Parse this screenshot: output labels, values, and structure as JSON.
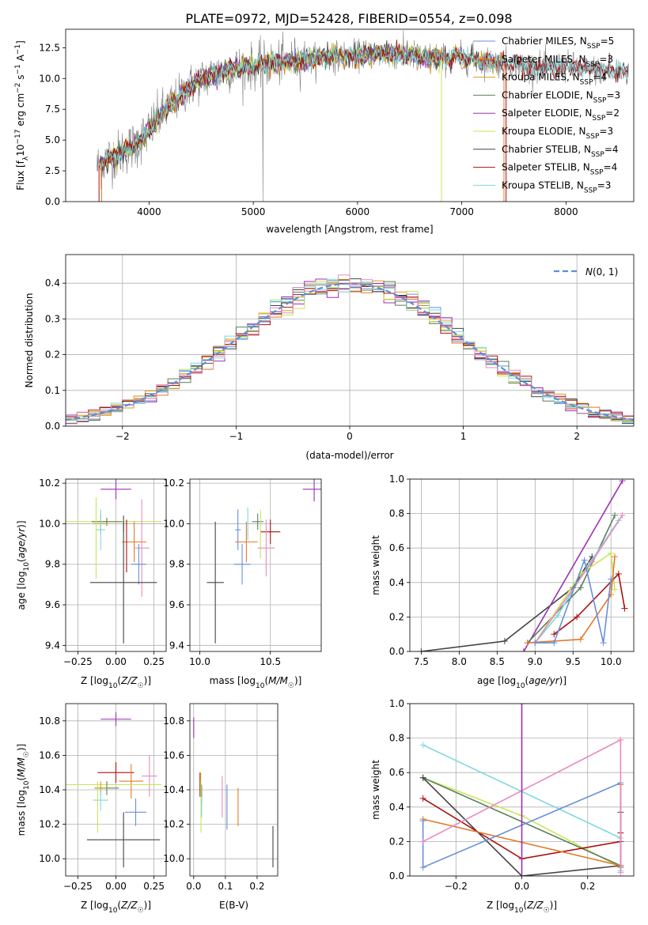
{
  "figure_title": "PLATE=0972, MJD=52428, FIBERID=0554, z=0.098",
  "colors": {
    "Chabrier MILES": "#6a8fd8",
    "Salpeter MILES": "#e07b2a",
    "Kroupa MILES": "#d4a017",
    "Chabrier ELODIE": "#5a7f5a",
    "Salpeter ELODIE": "#9b30b5",
    "Kroupa ELODIE": "#c8e65a",
    "Chabrier STELIB": "#444444",
    "Salpeter STELIB": "#aa1111",
    "Kroupa STELIB": "#7fd8de",
    "pink": "#e88ac0",
    "observed": "#808080",
    "normal": "#5b8fd6"
  },
  "chart_data": [
    {
      "id": "spectrum",
      "type": "line",
      "title": "PLATE=0972, MJD=52428, FIBERID=0554, z=0.098",
      "xlabel": "wavelength [Angstrom, rest frame]",
      "ylabel": "Flux [f",
      "xlim": [
        3200,
        8650
      ],
      "ylim": [
        0,
        14
      ],
      "xticks": [
        "4000",
        "5000",
        "6000",
        "7000",
        "8000"
      ],
      "yticks": [
        "0.0",
        "2.5",
        "5.0",
        "7.5",
        "10.0",
        "12.5"
      ],
      "continuum": {
        "x": [
          3500,
          3600,
          3700,
          3800,
          3900,
          4000,
          4100,
          4200,
          4300,
          4400,
          4500,
          4600,
          4800,
          5000,
          5200,
          5400,
          5600,
          5800,
          6000,
          6200,
          6400,
          6600,
          6800,
          7000,
          7200,
          7400,
          7600,
          7800,
          8000,
          8200,
          8400,
          8600
        ],
        "y": [
          2.8,
          3.5,
          3.8,
          4.3,
          4.8,
          5.8,
          6.9,
          7.8,
          8.6,
          9.4,
          9.9,
          10.3,
          10.8,
          11.0,
          11.2,
          11.5,
          11.6,
          11.8,
          11.9,
          12.0,
          12.0,
          11.8,
          11.6,
          11.7,
          11.4,
          11.3,
          11.0,
          10.9,
          11.0,
          10.7,
          10.6,
          10.5
        ]
      },
      "legend": [
        {
          "label": "Chabrier MILES, N",
          "sub": "SSP",
          "suffix": "=5"
        },
        {
          "label": "Salpeter MILES, N",
          "sub": "SSP",
          "suffix": "=3"
        },
        {
          "label": "Kroupa MILES, N",
          "sub": "SSP",
          "suffix": "=4"
        },
        {
          "label": "Chabrier ELODIE, N",
          "sub": "SSP",
          "suffix": "=3"
        },
        {
          "label": "Salpeter ELODIE, N",
          "sub": "SSP",
          "suffix": "=2"
        },
        {
          "label": "Kroupa ELODIE, N",
          "sub": "SSP",
          "suffix": "=3"
        },
        {
          "label": "Chabrier STELIB, N",
          "sub": "SSP",
          "suffix": "=4"
        },
        {
          "label": "Salpeter STELIB, N",
          "sub": "SSP",
          "suffix": "=4"
        },
        {
          "label": "Kroupa STELIB, N",
          "sub": "SSP",
          "suffix": "=3"
        }
      ]
    },
    {
      "id": "residuals",
      "type": "line",
      "xlabel": "(data-model)/error",
      "ylabel": "Normed distribution",
      "xlim": [
        -2.5,
        2.5
      ],
      "ylim": [
        0,
        0.48
      ],
      "xticks": [
        "−2",
        "−1",
        "0",
        "1",
        "2"
      ],
      "yticks": [
        "0.0",
        "0.1",
        "0.2",
        "0.3",
        "0.4"
      ],
      "legend": "N(0,1)",
      "bin_width": 0.1
    },
    {
      "id": "age_vs_Z",
      "type": "scatter",
      "xlabel": "Z [log10(Z/Z☉)]",
      "ylabel": "age [log10(age/yr)]",
      "xlim": [
        -0.33,
        0.33
      ],
      "ylim": [
        9.37,
        10.22
      ],
      "xticks": [
        "−0.25",
        "0.00",
        "0.25"
      ],
      "yticks": [
        "9.4",
        "9.6",
        "9.8",
        "10.0",
        "10.2"
      ],
      "points": [
        {
          "c": "Salpeter ELODIE",
          "x": 0.0,
          "y": 10.17,
          "xe": 0.1,
          "ye": 0.05
        },
        {
          "c": "Kroupa ELODIE",
          "x": -0.02,
          "y": 10.01,
          "xe": 0.32,
          "ye": 0.0
        },
        {
          "c": "Chabrier ELODIE",
          "x": -0.06,
          "y": 10.01,
          "xe": 0.1,
          "ye": 0.02
        },
        {
          "c": "Kroupa MILES",
          "x": -0.1,
          "y": 10.0,
          "xe": 0.05,
          "ye": 0.05
        },
        {
          "c": "Chabrier STELIB",
          "x": 0.05,
          "y": 10.0,
          "xe": 0.0,
          "ye": 0.04
        },
        {
          "c": "Kroupa STELIB",
          "x": -0.1,
          "y": 9.97,
          "xe": 0.03,
          "ye": 0.1
        },
        {
          "c": "Kroupa ELODIE",
          "x": -0.13,
          "y": 9.93,
          "xe": 0.0,
          "ye": 0.2
        },
        {
          "c": "Salpeter MILES",
          "x": 0.12,
          "y": 9.91,
          "xe": 0.08,
          "ye": 0.1
        },
        {
          "c": "Salpeter STELIB",
          "x": 0.07,
          "y": 9.89,
          "xe": 0.0,
          "ye": 0.13
        },
        {
          "c": "pink",
          "x": 0.17,
          "y": 9.88,
          "xe": 0.05,
          "ye": 0.24
        },
        {
          "c": "Chabrier MILES",
          "x": 0.15,
          "y": 9.8,
          "xe": 0.05,
          "ye": 0.1
        },
        {
          "c": "Chabrier STELIB",
          "x": 0.05,
          "y": 9.71,
          "xe": 0.22,
          "ye": 0.3
        }
      ]
    },
    {
      "id": "age_vs_mass",
      "type": "scatter",
      "xlabel": "mass [log10(M/M☉)]",
      "xlim": [
        9.93,
        10.86
      ],
      "ylim": [
        9.37,
        10.22
      ],
      "xticks": [
        "10.0",
        "10.5"
      ],
      "yticks": [
        "9.4",
        "9.6",
        "9.8",
        "10.0",
        "10.2"
      ],
      "points": [
        {
          "c": "Salpeter ELODIE",
          "x": 10.81,
          "y": 10.17,
          "xe": 0.08,
          "ye": 0.06
        },
        {
          "c": "Chabrier ELODIE",
          "x": 10.41,
          "y": 10.01,
          "xe": 0.04,
          "ye": 0.04
        },
        {
          "c": "Kroupa STELIB",
          "x": 10.34,
          "y": 10.0,
          "xe": 0.0,
          "ye": 0.08
        },
        {
          "c": "Salpeter STELIB",
          "x": 10.5,
          "y": 9.96,
          "xe": 0.07,
          "ye": 0.06
        },
        {
          "c": "Chabrier MILES",
          "x": 10.27,
          "y": 9.97,
          "xe": 0.02,
          "ye": 0.1
        },
        {
          "c": "Salpeter MILES",
          "x": 10.33,
          "y": 9.91,
          "xe": 0.08,
          "ye": 0.1
        },
        {
          "c": "Kroupa ELODIE",
          "x": 10.43,
          "y": 9.95,
          "xe": 0.0,
          "ye": 0.12
        },
        {
          "c": "pink",
          "x": 10.47,
          "y": 9.88,
          "xe": 0.06,
          "ye": 0.14
        },
        {
          "c": "Chabrier MILES",
          "x": 10.3,
          "y": 9.8,
          "xe": 0.06,
          "ye": 0.1
        },
        {
          "c": "Chabrier STELIB",
          "x": 10.11,
          "y": 9.71,
          "xe": 0.06,
          "ye": 0.3
        }
      ]
    },
    {
      "id": "mw_vs_age",
      "type": "line",
      "xlabel": "age [log10(age/yr)]",
      "ylabel": "mass weight",
      "xlim": [
        7.35,
        10.3
      ],
      "ylim": [
        0,
        1
      ],
      "xticks": [
        "7.5",
        "8.0",
        "8.5",
        "9.0",
        "9.5",
        "10.0"
      ],
      "yticks": [
        "0.0",
        "0.2",
        "0.4",
        "0.6",
        "0.8",
        "1.0"
      ],
      "series": [
        {
          "c": "Chabrier STELIB",
          "x": [
            7.5,
            8.6,
            9.5,
            9.75
          ],
          "y": [
            0.0,
            0.06,
            0.37,
            0.55
          ]
        },
        {
          "c": "Salpeter ELODIE",
          "x": [
            8.85,
            10.15
          ],
          "y": [
            0.0,
            0.99
          ]
        },
        {
          "c": "Chabrier ELODIE",
          "x": [
            8.9,
            9.6,
            10.05
          ],
          "y": [
            0.05,
            0.37,
            0.79
          ]
        },
        {
          "c": "Kroupa STELIB",
          "x": [
            9.0,
            9.3,
            9.7,
            10.1
          ],
          "y": [
            0.05,
            0.21,
            0.5,
            0.76
          ]
        },
        {
          "c": "Kroupa ELODIE",
          "x": [
            9.0,
            9.6,
            10.0,
            10.05
          ],
          "y": [
            0.05,
            0.45,
            0.57,
            0.36
          ]
        },
        {
          "c": "pink",
          "x": [
            9.0,
            9.75,
            10.15
          ],
          "y": [
            0.05,
            0.52,
            0.79
          ]
        },
        {
          "c": "Salpeter STELIB",
          "x": [
            9.25,
            9.55,
            10.1,
            10.18
          ],
          "y": [
            0.1,
            0.2,
            0.45,
            0.25
          ]
        },
        {
          "c": "Salpeter MILES",
          "x": [
            8.9,
            9.6,
            10.0,
            10.05
          ],
          "y": [
            0.05,
            0.07,
            0.33,
            0.55
          ]
        },
        {
          "c": "Chabrier MILES",
          "x": [
            9.0,
            9.25,
            9.65,
            9.9,
            10.0
          ],
          "y": [
            0.05,
            0.05,
            0.53,
            0.05,
            0.42
          ]
        }
      ]
    },
    {
      "id": "mass_vs_Z",
      "type": "scatter",
      "xlabel": "Z [log10(Z/Z☉)]",
      "ylabel": "mass [log10(M/M☉)]",
      "xlim": [
        -0.33,
        0.33
      ],
      "ylim": [
        9.9,
        10.9
      ],
      "xticks": [
        "−0.25",
        "0.00",
        "0.25"
      ],
      "yticks": [
        "10.0",
        "10.2",
        "10.4",
        "10.6",
        "10.8"
      ],
      "points": [
        {
          "c": "Salpeter ELODIE",
          "x": 0.0,
          "y": 10.81,
          "xe": 0.1,
          "ye": 0.04
        },
        {
          "c": "Salpeter STELIB",
          "x": 0.0,
          "y": 10.5,
          "xe": 0.12,
          "ye": 0.06
        },
        {
          "c": "pink",
          "x": 0.22,
          "y": 10.48,
          "xe": 0.05,
          "ye": 0.12
        },
        {
          "c": "Salpeter MILES",
          "x": 0.1,
          "y": 10.45,
          "xe": 0.08,
          "ye": 0.1
        },
        {
          "c": "Kroupa ELODIE",
          "x": -0.02,
          "y": 10.43,
          "xe": 0.32,
          "ye": 0.0
        },
        {
          "c": "Chabrier ELODIE",
          "x": -0.06,
          "y": 10.41,
          "xe": 0.08,
          "ye": 0.04
        },
        {
          "c": "Kroupa MILES",
          "x": -0.1,
          "y": 10.41,
          "xe": 0.04,
          "ye": 0.04
        },
        {
          "c": "Kroupa STELIB",
          "x": -0.1,
          "y": 10.34,
          "xe": 0.05,
          "ye": 0.06
        },
        {
          "c": "Kroupa ELODIE",
          "x": -0.12,
          "y": 10.3,
          "xe": 0.0,
          "ye": 0.15
        },
        {
          "c": "Chabrier MILES",
          "x": 0.13,
          "y": 10.27,
          "xe": 0.07,
          "ye": 0.08
        },
        {
          "c": "Chabrier STELIB",
          "x": 0.05,
          "y": 10.11,
          "xe": 0.24,
          "ye": 0.16
        }
      ]
    },
    {
      "id": "mass_vs_ebv",
      "type": "scatter",
      "xlabel": "E(B-V)",
      "xlim": [
        -0.012,
        0.265
      ],
      "ylim": [
        9.9,
        10.9
      ],
      "xticks": [
        "0.0",
        "0.1",
        "0.2"
      ],
      "yticks": [
        "10.0",
        "10.2",
        "10.4",
        "10.6",
        "10.8"
      ],
      "points": [
        {
          "c": "Salpeter ELODIE",
          "x": 0.0,
          "y": 10.76,
          "xe": 0.0,
          "ye": 0.06
        },
        {
          "c": "Salpeter STELIB",
          "x": 0.02,
          "y": 10.43,
          "xe": 0.0,
          "ye": 0.07
        },
        {
          "c": "Kroupa MILES",
          "x": 0.022,
          "y": 10.43,
          "xe": 0.0,
          "ye": 0.07
        },
        {
          "c": "Chabrier ELODIE",
          "x": 0.025,
          "y": 10.37,
          "xe": 0.0,
          "ye": 0.06
        },
        {
          "c": "Kroupa ELODIE",
          "x": 0.023,
          "y": 10.3,
          "xe": 0.0,
          "ye": 0.15
        },
        {
          "c": "Kroupa STELIB",
          "x": 0.025,
          "y": 10.3,
          "xe": 0.0,
          "ye": 0.06
        },
        {
          "c": "pink",
          "x": 0.09,
          "y": 10.36,
          "xe": 0.0,
          "ye": 0.12
        },
        {
          "c": "Chabrier MILES",
          "x": 0.105,
          "y": 10.3,
          "xe": 0.0,
          "ye": 0.13
        },
        {
          "c": "Salpeter MILES",
          "x": 0.14,
          "y": 10.3,
          "xe": 0.0,
          "ye": 0.11
        },
        {
          "c": "Chabrier STELIB",
          "x": 0.25,
          "y": 10.07,
          "xe": 0.0,
          "ye": 0.12
        }
      ]
    },
    {
      "id": "mw_vs_Z",
      "type": "line",
      "xlabel": "Z [log10(Z/Z☉)]",
      "ylabel": "mass weight",
      "xlim": [
        -0.34,
        0.34
      ],
      "ylim": [
        0,
        1
      ],
      "xticks": [
        "−0.2",
        "0.0",
        "0.2"
      ],
      "yticks": [
        "0.0",
        "0.2",
        "0.4",
        "0.6",
        "0.8",
        "1.0"
      ],
      "series": [
        {
          "c": "Kroupa STELIB",
          "x": [
            -0.3,
            0.3,
            0.3
          ],
          "y": [
            0.76,
            0.22,
            0.03
          ]
        },
        {
          "c": "Kroupa ELODIE",
          "x": [
            -0.3,
            0.0,
            0.3
          ],
          "y": [
            0.57,
            0.35,
            0.05
          ]
        },
        {
          "c": "Chabrier ELODIE",
          "x": [
            -0.3,
            0.3,
            0.3
          ],
          "y": [
            0.57,
            0.06,
            0.05
          ]
        },
        {
          "c": "Chabrier STELIB",
          "x": [
            -0.3,
            0.0,
            0.3,
            0.3
          ],
          "y": [
            0.57,
            0.0,
            0.06,
            0.37
          ]
        },
        {
          "c": "Salpeter STELIB",
          "x": [
            -0.3,
            0.0,
            0.3,
            0.3
          ],
          "y": [
            0.45,
            0.1,
            0.2,
            0.25
          ]
        },
        {
          "c": "Salpeter MILES",
          "x": [
            -0.3,
            0.3,
            0.3
          ],
          "y": [
            0.33,
            0.06,
            0.53
          ]
        },
        {
          "c": "Chabrier MILES",
          "x": [
            -0.3,
            -0.3,
            0.3,
            0.3
          ],
          "y": [
            0.32,
            0.05,
            0.54,
            0.05
          ]
        },
        {
          "c": "pink",
          "x": [
            -0.3,
            0.3,
            0.3
          ],
          "y": [
            0.2,
            0.79,
            0.02
          ]
        },
        {
          "c": "Salpeter ELODIE",
          "x": [
            0.0,
            0.0
          ],
          "y": [
            0.0,
            1.0
          ]
        }
      ]
    }
  ]
}
